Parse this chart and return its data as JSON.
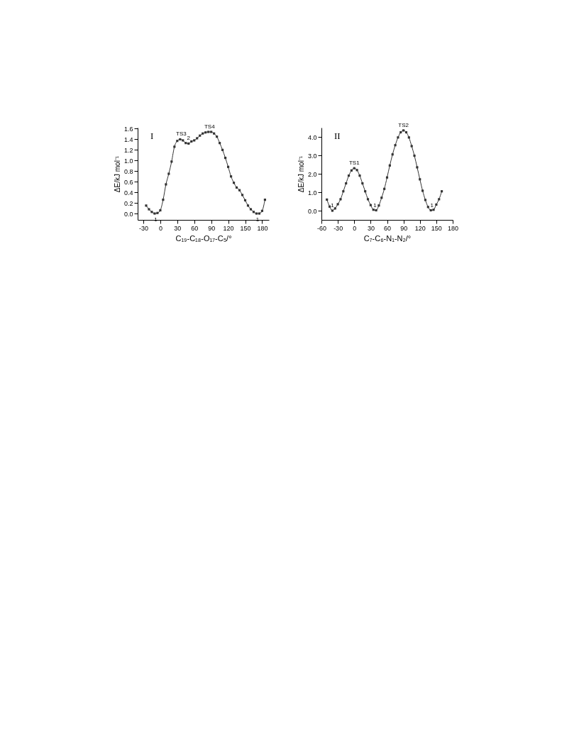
{
  "chart_data": [
    {
      "type": "line",
      "xlabel": "C₁₉-C₁₈-O₁₇-C₅/°",
      "ylabel": "ΔE/kJ mol⁻¹",
      "x": [
        -25,
        -20,
        -15,
        -10,
        -5,
        0,
        5,
        10,
        15,
        20,
        25,
        30,
        35,
        40,
        45,
        50,
        55,
        60,
        65,
        70,
        75,
        80,
        85,
        90,
        95,
        100,
        105,
        110,
        115,
        120,
        125,
        130,
        135,
        140,
        145,
        150,
        155,
        160,
        165,
        170,
        175,
        180,
        185
      ],
      "series": [
        {
          "color": "#333333",
          "values": [
            0.15,
            0.08,
            0.03,
            0.0,
            0.01,
            0.06,
            0.26,
            0.55,
            0.75,
            0.98,
            1.26,
            1.37,
            1.4,
            1.38,
            1.33,
            1.32,
            1.36,
            1.38,
            1.42,
            1.47,
            1.51,
            1.53,
            1.54,
            1.54,
            1.51,
            1.45,
            1.33,
            1.2,
            1.05,
            0.88,
            0.7,
            0.58,
            0.49,
            0.44,
            0.35,
            0.25,
            0.15,
            0.08,
            0.03,
            0.0,
            0.0,
            0.05,
            0.26
          ]
        }
      ],
      "xlim": [
        -40,
        192
      ],
      "ylim": [
        -0.12,
        1.62
      ],
      "xticks": [
        -30,
        0,
        30,
        60,
        90,
        120,
        150,
        180
      ],
      "yticks": [
        {
          "value": 0,
          "label": "0.0"
        },
        0.2,
        0.4,
        0.6,
        0.8,
        {
          "value": 1,
          "label": "1.0"
        },
        1.2,
        1.4,
        1.6
      ],
      "marker": "square",
      "line_style": "solid",
      "grid": false,
      "annotations": [
        "I",
        {
          "text": "TS3",
          "x": 37,
          "y": 1.4
        },
        {
          "text": "2",
          "x": 50,
          "y": 1.32
        },
        {
          "text": "TS4",
          "x": 87,
          "y": 1.54
        },
        {
          "text": "1",
          "x": -8,
          "y": 0.0
        },
        {
          "text": "1",
          "x": 172,
          "y": 0.0
        }
      ]
    },
    {
      "type": "line",
      "xlabel": "C₇-C₆-N₁-N₂/°",
      "ylabel": "ΔE/kJ mol⁻¹",
      "x": [
        -50,
        -45,
        -40,
        -35,
        -30,
        -25,
        -20,
        -15,
        -10,
        -5,
        0,
        5,
        10,
        15,
        20,
        25,
        30,
        35,
        40,
        45,
        50,
        55,
        60,
        65,
        70,
        75,
        80,
        85,
        90,
        95,
        100,
        105,
        110,
        115,
        120,
        125,
        130,
        135,
        140,
        145,
        150,
        155,
        160
      ],
      "series": [
        {
          "color": "#333333",
          "values": [
            0.6,
            0.22,
            0.0,
            0.12,
            0.35,
            0.62,
            1.05,
            1.48,
            1.9,
            2.18,
            2.3,
            2.2,
            1.9,
            1.48,
            1.05,
            0.62,
            0.3,
            0.05,
            0.02,
            0.28,
            0.7,
            1.18,
            1.8,
            2.45,
            3.05,
            3.55,
            3.97,
            4.25,
            4.35,
            4.25,
            3.97,
            3.5,
            2.98,
            2.35,
            1.7,
            1.08,
            0.58,
            0.2,
            0.02,
            0.05,
            0.33,
            0.62,
            1.05
          ]
        }
      ],
      "xlim": [
        -60,
        180
      ],
      "ylim": [
        -0.5,
        4.5
      ],
      "xticks": [
        -60,
        -30,
        0,
        30,
        60,
        90,
        120,
        150,
        180
      ],
      "yticks": [
        {
          "value": 0,
          "label": "0.0"
        },
        {
          "value": 1,
          "label": "1.0"
        },
        {
          "value": 2,
          "label": "2.0"
        },
        {
          "value": 3,
          "label": "3.0"
        },
        {
          "value": 4,
          "label": "4.0"
        }
      ],
      "marker": "square",
      "line_style": "solid",
      "grid": false,
      "annotations": [
        "II",
        {
          "text": "TS1",
          "x": 0,
          "y": 2.3
        },
        {
          "text": "TS2",
          "x": 90,
          "y": 4.35
        },
        {
          "text": "1",
          "x": -40,
          "y": 0.0
        },
        {
          "text": "1",
          "x": 38,
          "y": 0.0
        },
        {
          "text": "1",
          "x": 142,
          "y": 0.0
        }
      ]
    }
  ]
}
